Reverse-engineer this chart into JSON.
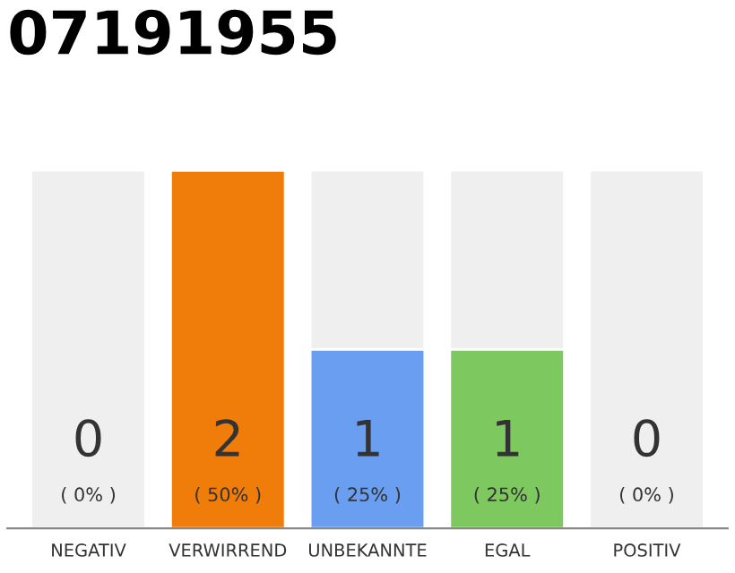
{
  "chart_data": {
    "type": "bar",
    "title": "07191955",
    "categories": [
      "NEGATIV",
      "VERWIRREND",
      "UNBEKANNTE",
      "EGAL",
      "POSITIV"
    ],
    "stacked": true,
    "ylim": [
      0,
      2
    ],
    "tick_labels": "x",
    "legend": false,
    "series": [
      {
        "colors": [
          "#efefef",
          "#f07d0a",
          "#6a9ef0",
          "#7ec95f",
          "#efefef"
        ],
        "values": [
          0,
          2,
          1,
          1,
          0
        ],
        "value_labels": [
          "0",
          "2",
          "1",
          "1",
          "0"
        ]
      },
      {
        "color": "#efefef",
        "values": [
          2,
          0,
          1,
          1,
          2
        ]
      }
    ],
    "annotations": [
      "( 0% )",
      "( 50% )",
      "( 25% )",
      "( 25% )",
      "( 0% )"
    ]
  }
}
